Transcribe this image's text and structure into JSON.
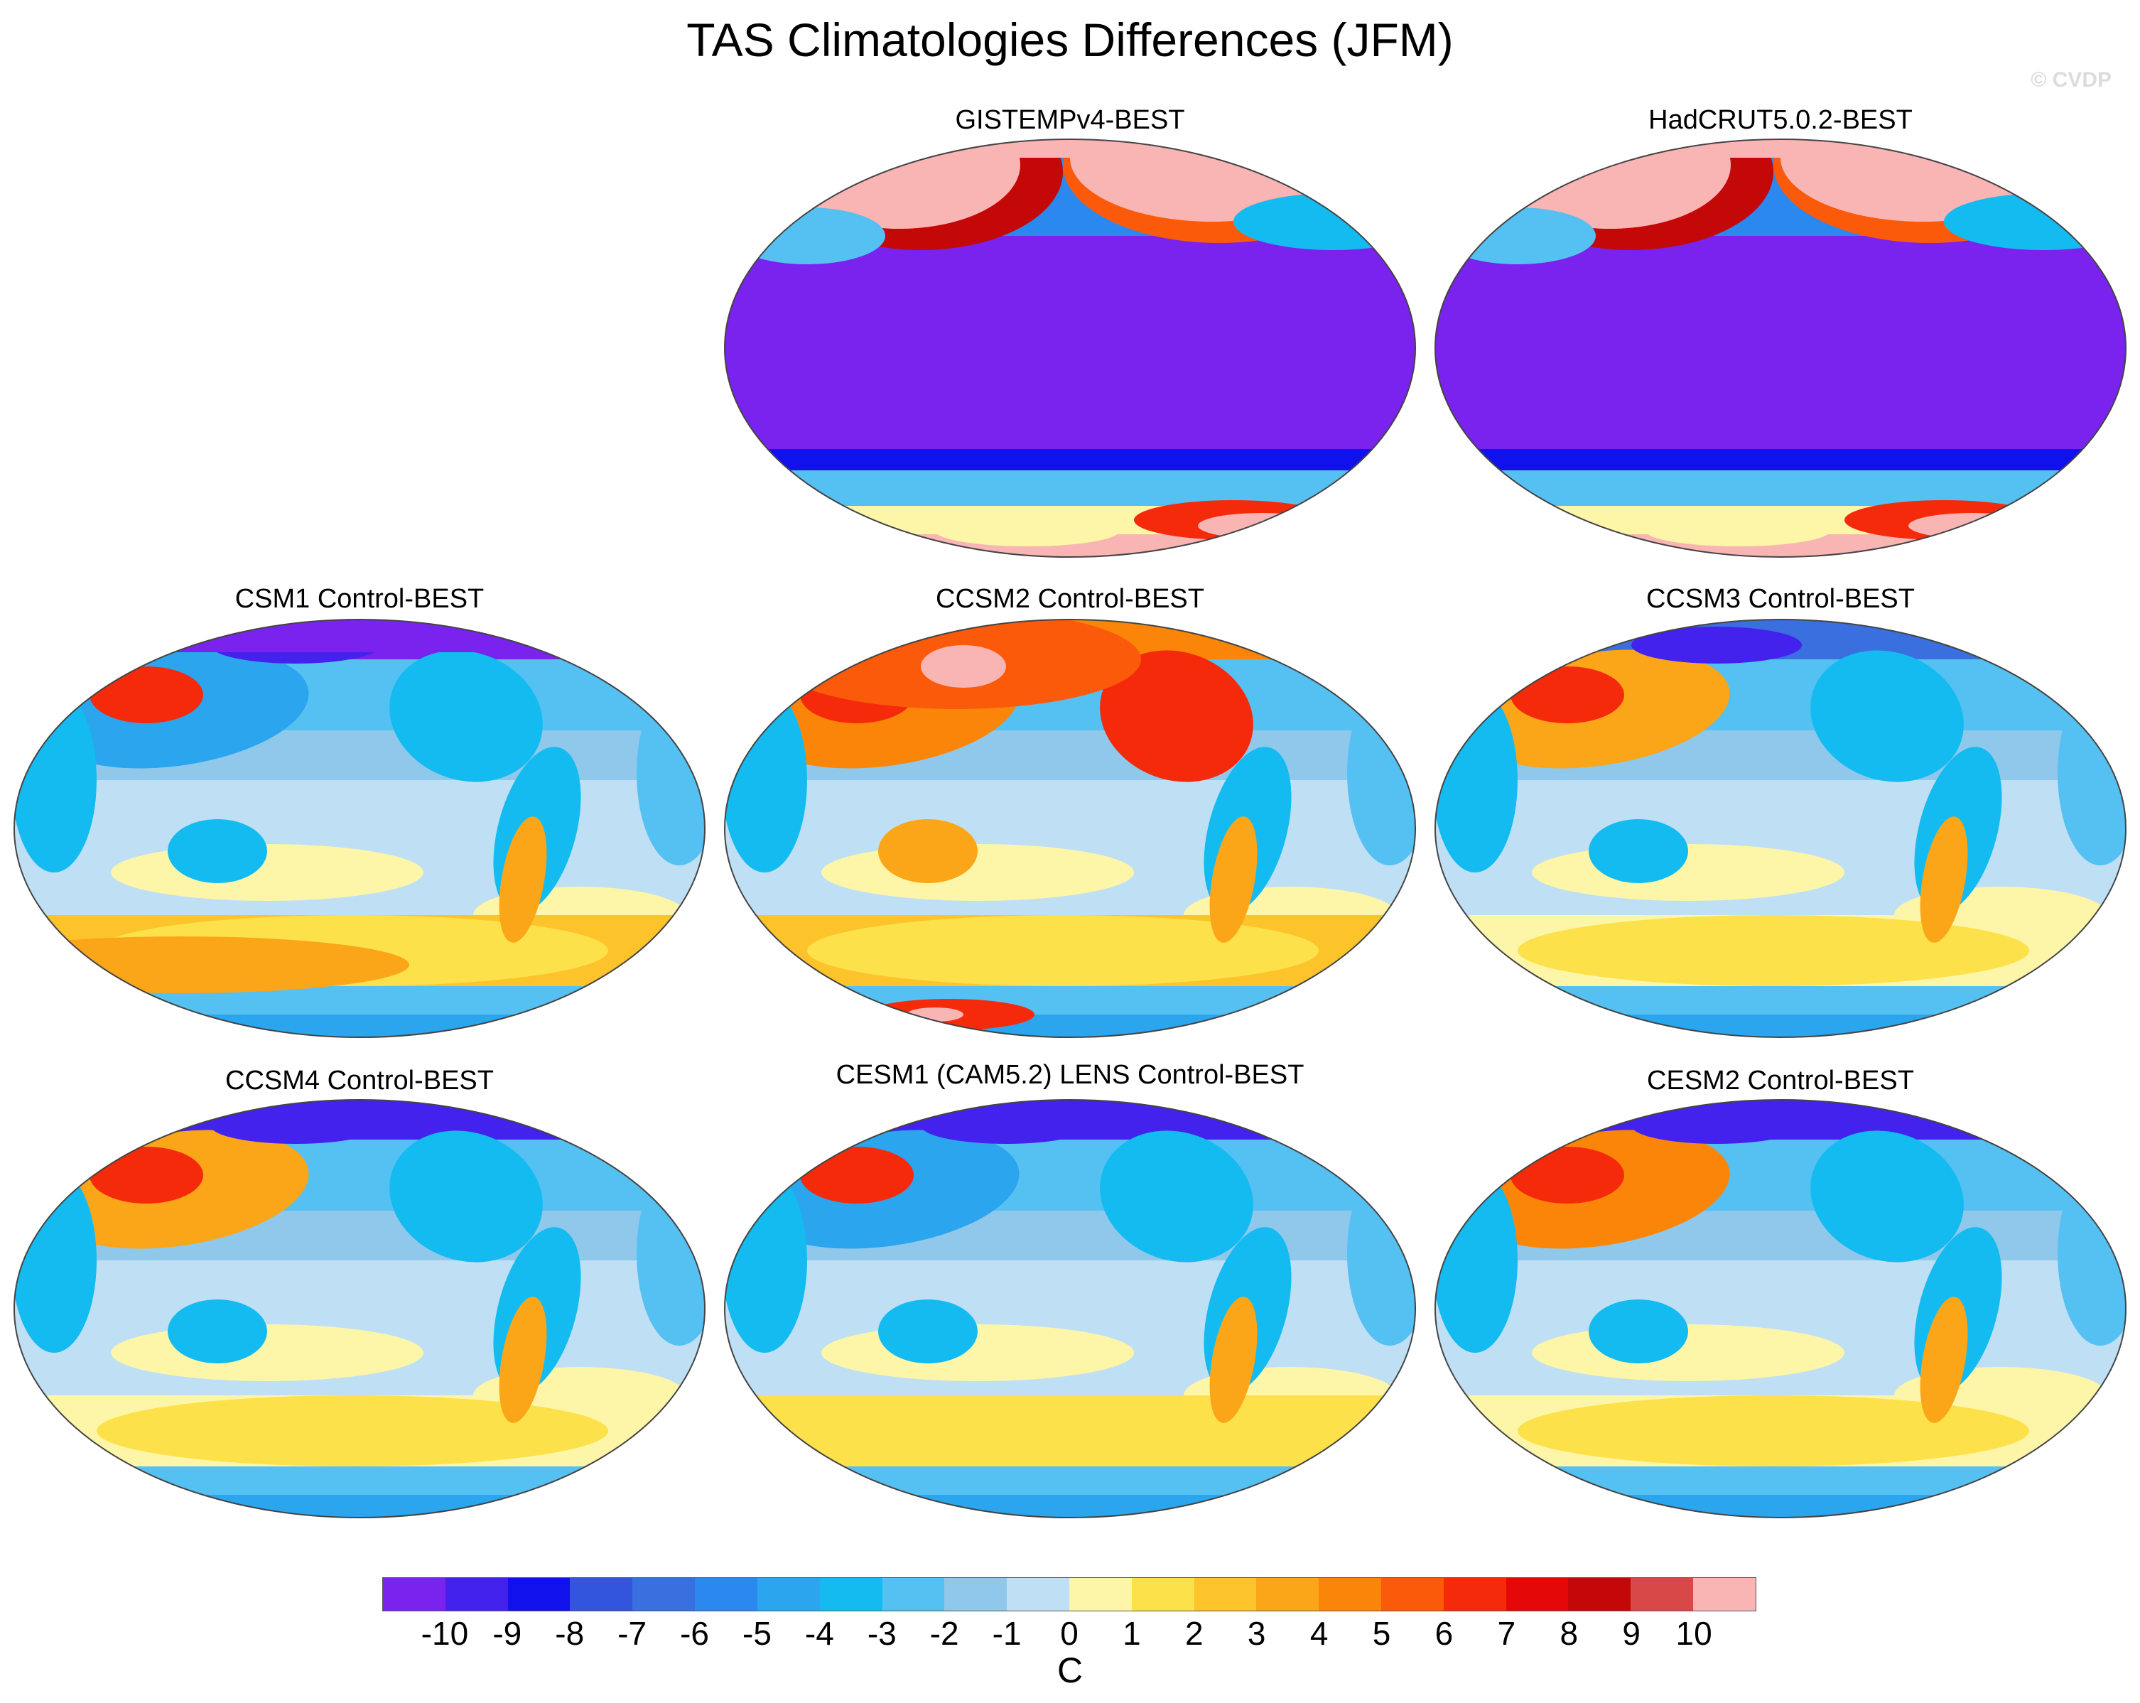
{
  "title": "TAS Climatologies Differences (JFM)",
  "copyright": "© CVDP",
  "panels": [
    {
      "label": "GISTEMPv4-BEST",
      "pattern": "obs"
    },
    {
      "label": "HadCRUT5.0.2-BEST",
      "pattern": "obs"
    },
    {
      "label": "CSM1 Control-BEST",
      "pattern": "csm1"
    },
    {
      "label": "CCSM2 Control-BEST",
      "pattern": "ccsm2"
    },
    {
      "label": "CCSM3 Control-BEST",
      "pattern": "ccsm3"
    },
    {
      "label": "CCSM4 Control-BEST",
      "pattern": "ccsm4"
    },
    {
      "label": "CESM1 (CAM5.2) LENS Control-BEST",
      "pattern": "cesm1"
    },
    {
      "label": "CESM2 Control-BEST",
      "pattern": "cesm2"
    }
  ],
  "colorbar": {
    "labels": [
      "-10",
      "-9",
      "-8",
      "-7",
      "-6",
      "-5",
      "-4",
      "-3",
      "-2",
      "-1",
      "0",
      "1",
      "2",
      "3",
      "4",
      "5",
      "6",
      "7",
      "8",
      "9",
      "10"
    ],
    "colors": [
      "#7a22ee",
      "#4422ee",
      "#1111ee",
      "#3355dd",
      "#3a6fe0",
      "#2a88ee",
      "#2aa5ee",
      "#14bbf0",
      "#55c0f2",
      "#90c8ec",
      "#bfdff5",
      "#fdf6a8",
      "#fde14a",
      "#fcc32a",
      "#fba518",
      "#fb8508",
      "#fb5a0a",
      "#f52a0a",
      "#e50808",
      "#c40808",
      "#d84848",
      "#f9b4b4"
    ],
    "units": "C"
  }
}
